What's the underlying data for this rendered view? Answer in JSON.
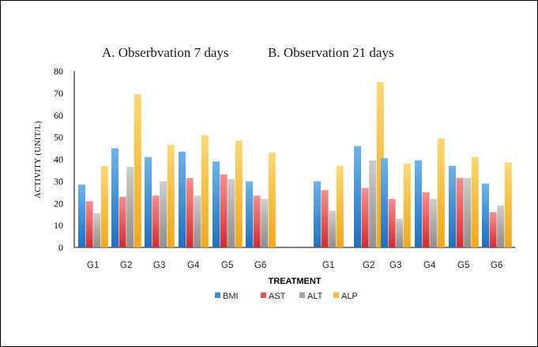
{
  "chart_data": {
    "type": "bar",
    "title": "",
    "panel_titles": [
      "A. Obserbvation 7 days",
      "B. Observation 21 days"
    ],
    "ylabel": "ACTIVITY (UNIT/L)",
    "xlabel": "TREATMENT",
    "ylim": [
      0,
      80
    ],
    "yticks": [
      0,
      10,
      20,
      30,
      40,
      50,
      60,
      70,
      80
    ],
    "grid": false,
    "legend_position": "bottom",
    "panels": [
      {
        "categories": [
          "G1",
          "G2",
          "G3",
          "G4",
          "G5",
          "G6"
        ],
        "series": [
          {
            "name": "BMI",
            "color": "#3d8fd6",
            "values": [
              28.5,
              45,
              41,
              43.5,
              39,
              30
            ]
          },
          {
            "name": "AST",
            "color": "#e8585a",
            "values": [
              21,
              23,
              23.5,
              31.5,
              33,
              23.5
            ]
          },
          {
            "name": "ALT",
            "color": "#a6a6a6",
            "values": [
              15.5,
              36.5,
              30,
              23.5,
              31,
              22
            ]
          },
          {
            "name": "ALP",
            "color": "#f6bc3c",
            "values": [
              37,
              69.5,
              46.5,
              51,
              48.5,
              43
            ]
          }
        ]
      },
      {
        "categories": [
          "G1",
          "G2",
          "G3",
          "G4",
          "G5",
          "G6"
        ],
        "series": [
          {
            "name": "BMI",
            "color": "#3d8fd6",
            "values": [
              30,
              46,
              40.5,
              39.5,
              37,
              29
            ]
          },
          {
            "name": "AST",
            "color": "#e8585a",
            "values": [
              26,
              27,
              22,
              25,
              31.5,
              16
            ]
          },
          {
            "name": "ALT",
            "color": "#a6a6a6",
            "values": [
              16.5,
              39.5,
              13,
              22,
              31.5,
              19
            ]
          },
          {
            "name": "ALP",
            "color": "#f6bc3c",
            "values": [
              37,
              75,
              38,
              49.5,
              41,
              38.5
            ]
          }
        ]
      }
    ]
  }
}
